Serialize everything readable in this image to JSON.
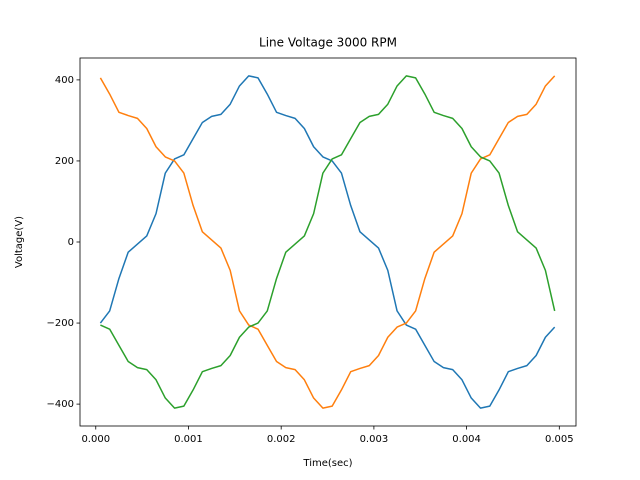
{
  "chart_data": {
    "type": "line",
    "title": "Line Voltage 3000 RPM",
    "x_label": "Time(sec)",
    "y_label": "Voltage(V)",
    "x": [
      5e-05,
      0.00015,
      0.00025,
      0.00035,
      0.00045,
      0.00055,
      0.00065,
      0.00075,
      0.00085,
      0.00095,
      0.00105,
      0.00115,
      0.00125,
      0.00135,
      0.00145,
      0.00155,
      0.00165,
      0.00175,
      0.00185,
      0.00195,
      0.00205,
      0.00215,
      0.00225,
      0.00235,
      0.00245,
      0.00255,
      0.00265,
      0.00275,
      0.00285,
      0.00295,
      0.00305,
      0.00315,
      0.00325,
      0.00335,
      0.00345,
      0.00355,
      0.00365,
      0.00375,
      0.00385,
      0.00395,
      0.00405,
      0.00415,
      0.00425,
      0.00435,
      0.00445,
      0.00455,
      0.00465,
      0.00475,
      0.00485,
      0.00495
    ],
    "series": [
      {
        "color": "#1f77b4",
        "values": [
          -200,
          -170,
          -90,
          -25,
          -5,
          15,
          70,
          170,
          205,
          215,
          255,
          295,
          310,
          315,
          340,
          385,
          410,
          405,
          365,
          320,
          312,
          305,
          280,
          235,
          210,
          200,
          170,
          90,
          25,
          5,
          -15,
          -70,
          -170,
          -205,
          -215,
          -255,
          -295,
          -310,
          -315,
          -340,
          -385,
          -410,
          -405,
          -365,
          -320,
          -312,
          -305,
          -280,
          -235,
          -210
        ]
      },
      {
        "color": "#ff7f0e",
        "values": [
          405,
          365,
          320,
          312,
          305,
          280,
          235,
          210,
          200,
          170,
          90,
          25,
          5,
          -15,
          -70,
          -170,
          -205,
          -215,
          -255,
          -295,
          -310,
          -315,
          -340,
          -385,
          -410,
          -405,
          -365,
          -320,
          -312,
          -305,
          -280,
          -235,
          -210,
          -200,
          -170,
          -90,
          -25,
          -5,
          15,
          70,
          170,
          205,
          215,
          255,
          295,
          310,
          315,
          340,
          385,
          410
        ]
      },
      {
        "color": "#2ca02c",
        "values": [
          -205,
          -215,
          -255,
          -295,
          -310,
          -315,
          -340,
          -385,
          -410,
          -405,
          -365,
          -320,
          -312,
          -305,
          -280,
          -235,
          -210,
          -200,
          -170,
          -90,
          -25,
          -5,
          15,
          70,
          170,
          205,
          215,
          255,
          295,
          310,
          315,
          340,
          385,
          410,
          405,
          365,
          320,
          312,
          305,
          280,
          235,
          210,
          200,
          170,
          90,
          25,
          5,
          -15,
          -70,
          -170
        ]
      }
    ],
    "xlim": [
      -0.00017,
      0.00518
    ],
    "ylim": [
      -454,
      454
    ],
    "xticks": [
      {
        "value": 0,
        "label": "0.000"
      },
      {
        "value": 0.001,
        "label": "0.001"
      },
      {
        "value": 0.002,
        "label": "0.002"
      },
      {
        "value": 0.003,
        "label": "0.003"
      },
      {
        "value": 0.004,
        "label": "0.004"
      },
      {
        "value": 0.005,
        "label": "0.005"
      }
    ],
    "yticks": [
      {
        "value": -400,
        "label": "−400"
      },
      {
        "value": -200,
        "label": "−200"
      },
      0,
      200,
      400
    ]
  }
}
